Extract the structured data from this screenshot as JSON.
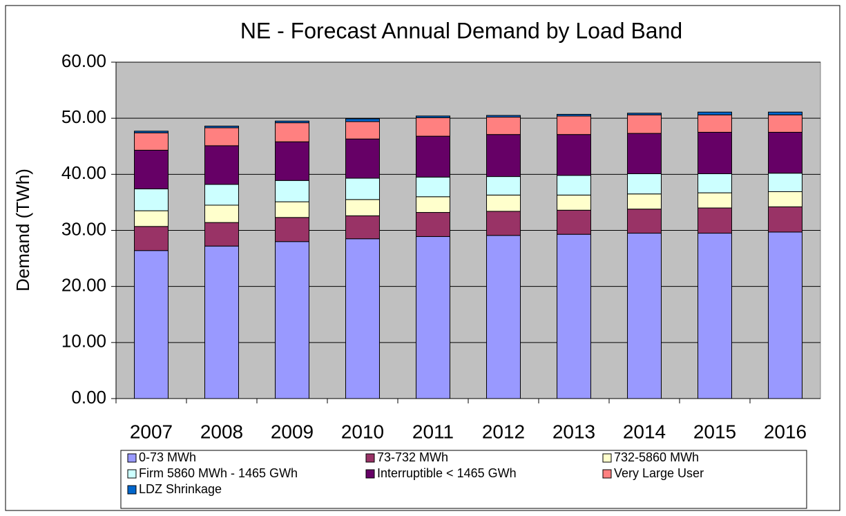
{
  "chart_data": {
    "type": "bar",
    "stacked": true,
    "title": "NE - Forecast Annual Demand by Load Band",
    "y_label": "Demand (TWh)",
    "categories": [
      "2007",
      "2008",
      "2009",
      "2010",
      "2011",
      "2012",
      "2013",
      "2014",
      "2015",
      "2016"
    ],
    "series": [
      {
        "name": "0-73 MWh",
        "color": "#9999ff",
        "values": [
          26.4,
          27.2,
          28.0,
          28.5,
          28.9,
          29.1,
          29.3,
          29.5,
          29.5,
          29.7
        ]
      },
      {
        "name": "73-732 MWh",
        "color": "#993366",
        "values": [
          4.3,
          4.2,
          4.3,
          4.1,
          4.3,
          4.3,
          4.3,
          4.3,
          4.5,
          4.5
        ]
      },
      {
        "name": "732-5860 MWh",
        "color": "#ffffcc",
        "values": [
          2.8,
          3.1,
          2.8,
          2.9,
          2.8,
          2.9,
          2.7,
          2.7,
          2.7,
          2.7
        ]
      },
      {
        "name": "Firm 5860 MWh - 1465 GWh",
        "color": "#ccffff",
        "values": [
          3.9,
          3.7,
          3.8,
          3.8,
          3.5,
          3.3,
          3.5,
          3.6,
          3.4,
          3.3
        ]
      },
      {
        "name": "Interruptible < 1465 GWh",
        "color": "#660066",
        "values": [
          6.9,
          6.9,
          6.9,
          7.0,
          7.3,
          7.5,
          7.3,
          7.2,
          7.4,
          7.3
        ]
      },
      {
        "name": "Very Large User",
        "color": "#ff8080",
        "values": [
          3.1,
          3.2,
          3.4,
          3.1,
          3.3,
          3.1,
          3.3,
          3.3,
          3.1,
          3.1
        ]
      },
      {
        "name": "LDZ Shrinkage",
        "color": "#0066cc",
        "values": [
          0.3,
          0.3,
          0.3,
          0.5,
          0.3,
          0.3,
          0.3,
          0.3,
          0.5,
          0.5
        ]
      }
    ],
    "ylim": [
      0,
      60
    ],
    "yticks": [
      {
        "value": 0,
        "label": "0.00"
      },
      {
        "value": 10,
        "label": "10.00"
      },
      {
        "value": 20,
        "label": "20.00"
      },
      {
        "value": 30,
        "label": "30.00"
      },
      {
        "value": 40,
        "label": "40.00"
      },
      {
        "value": 50,
        "label": "50.00"
      },
      {
        "value": 60,
        "label": "60.00"
      }
    ],
    "grid": true,
    "plot_background": "#c0c0c0",
    "legend": "bottom"
  }
}
